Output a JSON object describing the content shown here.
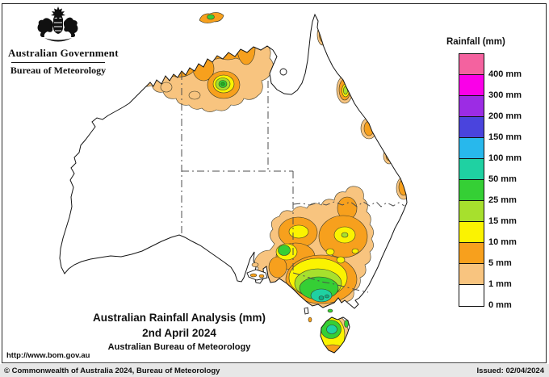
{
  "header": {
    "government": "Australian Government",
    "bureau": "Bureau of Meteorology"
  },
  "legend": {
    "title": "Rainfall (mm)",
    "segments": [
      {
        "color": "#f4629f",
        "boundary_label": "400 mm"
      },
      {
        "color": "#fa00e8",
        "boundary_label": "300 mm"
      },
      {
        "color": "#9c2ce4",
        "boundary_label": "200 mm"
      },
      {
        "color": "#4a44dd",
        "boundary_label": "150 mm"
      },
      {
        "color": "#28b8ec",
        "boundary_label": "100 mm"
      },
      {
        "color": "#1fd1a2",
        "boundary_label": "50 mm"
      },
      {
        "color": "#35cf35",
        "boundary_label": "25 mm"
      },
      {
        "color": "#a7e02d",
        "boundary_label": "15 mm"
      },
      {
        "color": "#fbf301",
        "boundary_label": "10 mm"
      },
      {
        "color": "#f7a01d",
        "boundary_label": "5 mm"
      },
      {
        "color": "#f8c47f",
        "boundary_label": "1 mm"
      },
      {
        "color": "#ffffff",
        "boundary_label": "0 mm"
      }
    ]
  },
  "caption": {
    "line1": "Australian Rainfall Analysis (mm)",
    "line2": "2nd April 2024",
    "line3": "Australian Bureau of Meteorology"
  },
  "url_label": "http://www.bom.gov.au",
  "footer": {
    "copyright": "© Commonwealth of Australia 2024, Bureau of Meteorology",
    "issued": "Issued: 02/04/2024"
  }
}
